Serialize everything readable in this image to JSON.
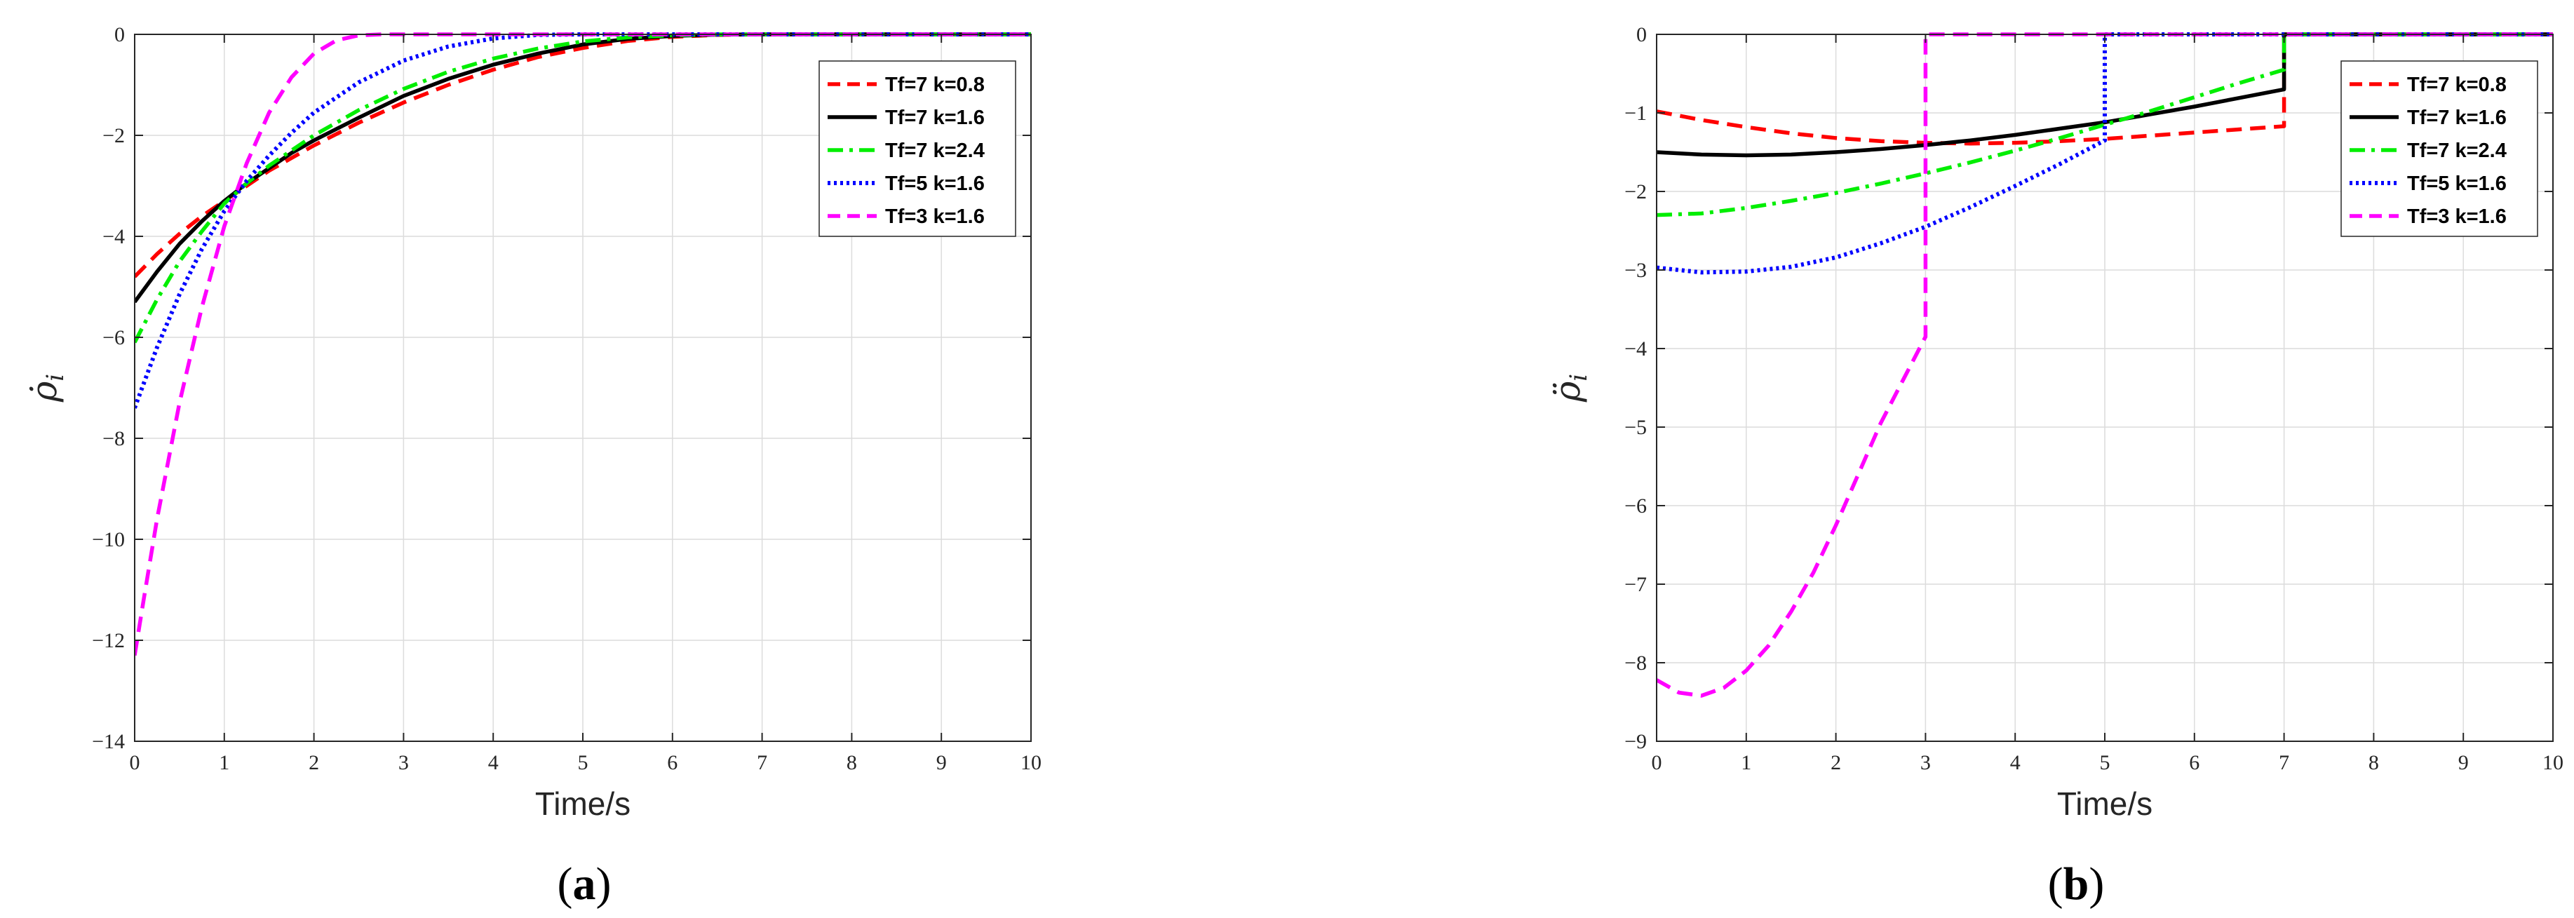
{
  "chart_data": [
    {
      "id": "a",
      "type": "line",
      "caption": "a",
      "xlabel": "Time/s",
      "ylabel": "ρ̇",
      "ylabel_sub": "i",
      "xlim": [
        0,
        10
      ],
      "ylim": [
        -14,
        0
      ],
      "xticks": [
        0,
        1,
        2,
        3,
        4,
        5,
        6,
        7,
        8,
        9,
        10
      ],
      "yticks": [
        0,
        -2,
        -4,
        -6,
        -8,
        -10,
        -12,
        -14
      ],
      "ytick_labels": [
        "0",
        "−2",
        "−4",
        "−6",
        "−8",
        "−10",
        "−12",
        "−14"
      ],
      "grid": true,
      "legend_position": "top-right",
      "series": [
        {
          "name": "Tf=7 k=0.8",
          "color": "#ff0000",
          "style": "dashed",
          "x": [
            0,
            0.25,
            0.5,
            0.75,
            1,
            1.25,
            1.5,
            1.75,
            2,
            2.5,
            3,
            3.5,
            4,
            4.5,
            5,
            5.5,
            6,
            6.5,
            7,
            10
          ],
          "y": [
            -4.8,
            -4.35,
            -3.95,
            -3.6,
            -3.3,
            -3.0,
            -2.7,
            -2.45,
            -2.2,
            -1.75,
            -1.35,
            -1.0,
            -0.7,
            -0.45,
            -0.27,
            -0.13,
            -0.05,
            -0.01,
            0,
            0
          ]
        },
        {
          "name": "Tf=7 k=1.6",
          "color": "#000000",
          "style": "solid",
          "x": [
            0,
            0.25,
            0.5,
            0.75,
            1,
            1.25,
            1.5,
            1.75,
            2,
            2.5,
            3,
            3.5,
            4,
            4.5,
            5,
            5.5,
            6,
            6.5,
            7,
            10
          ],
          "y": [
            -5.3,
            -4.7,
            -4.15,
            -3.7,
            -3.3,
            -2.95,
            -2.65,
            -2.35,
            -2.1,
            -1.65,
            -1.22,
            -0.88,
            -0.6,
            -0.38,
            -0.2,
            -0.09,
            -0.03,
            -0.005,
            0,
            0
          ]
        },
        {
          "name": "Tf=7 k=2.4",
          "color": "#00ee00",
          "style": "dashdot",
          "x": [
            0,
            0.25,
            0.5,
            0.75,
            1,
            1.25,
            1.5,
            1.75,
            2,
            2.5,
            3,
            3.5,
            4,
            4.5,
            5,
            5.5,
            6,
            6.5,
            7,
            10
          ],
          "y": [
            -6.1,
            -5.25,
            -4.5,
            -3.9,
            -3.35,
            -2.95,
            -2.6,
            -2.3,
            -2.0,
            -1.5,
            -1.08,
            -0.74,
            -0.48,
            -0.28,
            -0.14,
            -0.06,
            -0.02,
            0,
            0,
            0
          ]
        },
        {
          "name": "Tf=5 k=1.6",
          "color": "#0000ff",
          "style": "dotted",
          "x": [
            0,
            0.25,
            0.5,
            0.75,
            1,
            1.25,
            1.5,
            1.75,
            2,
            2.5,
            3,
            3.5,
            4,
            4.5,
            5,
            10
          ],
          "y": [
            -7.4,
            -6.2,
            -5.15,
            -4.25,
            -3.5,
            -2.9,
            -2.4,
            -1.95,
            -1.55,
            -0.95,
            -0.52,
            -0.24,
            -0.08,
            -0.01,
            0,
            0
          ]
        },
        {
          "name": "Tf=3 k=1.6",
          "color": "#ff00ff",
          "style": "dashed",
          "x": [
            0,
            0.1,
            0.25,
            0.5,
            0.75,
            1,
            1.25,
            1.5,
            1.75,
            2,
            2.25,
            2.5,
            2.75,
            3,
            10
          ],
          "y": [
            -12.3,
            -11.2,
            -9.6,
            -7.3,
            -5.4,
            -3.8,
            -2.55,
            -1.55,
            -0.85,
            -0.38,
            -0.12,
            -0.02,
            0,
            0,
            0
          ]
        }
      ]
    },
    {
      "id": "b",
      "type": "line",
      "caption": "b",
      "xlabel": "Time/s",
      "ylabel": "ρ̈",
      "ylabel_sub": "i",
      "xlim": [
        0,
        10
      ],
      "ylim": [
        -9,
        0
      ],
      "xticks": [
        0,
        1,
        2,
        3,
        4,
        5,
        6,
        7,
        8,
        9,
        10
      ],
      "yticks": [
        0,
        -1,
        -2,
        -3,
        -4,
        -5,
        -6,
        -7,
        -8,
        -9
      ],
      "ytick_labels": [
        "0",
        "−1",
        "−2",
        "−3",
        "−4",
        "−5",
        "−6",
        "−7",
        "−8",
        "−9"
      ],
      "grid": true,
      "legend_position": "top-right",
      "series": [
        {
          "name": "Tf=7 k=0.8",
          "color": "#ff0000",
          "style": "dashed",
          "x": [
            0,
            0.5,
            1,
            1.5,
            2,
            2.5,
            3,
            3.5,
            4,
            4.5,
            5,
            5.5,
            6,
            6.5,
            7,
            7,
            10
          ],
          "y": [
            -0.98,
            -1.09,
            -1.18,
            -1.26,
            -1.32,
            -1.36,
            -1.38,
            -1.39,
            -1.38,
            -1.36,
            -1.33,
            -1.29,
            -1.25,
            -1.21,
            -1.17,
            0,
            0
          ]
        },
        {
          "name": "Tf=7 k=1.6",
          "color": "#000000",
          "style": "solid",
          "x": [
            0,
            0.5,
            1,
            1.5,
            2,
            2.5,
            3,
            3.5,
            4,
            4.5,
            5,
            5.5,
            6,
            6.5,
            7,
            7,
            10
          ],
          "y": [
            -1.5,
            -1.53,
            -1.54,
            -1.53,
            -1.5,
            -1.46,
            -1.41,
            -1.35,
            -1.28,
            -1.2,
            -1.12,
            -1.02,
            -0.92,
            -0.81,
            -0.7,
            0,
            0
          ]
        },
        {
          "name": "Tf=7 k=2.4",
          "color": "#00ee00",
          "style": "dashdot",
          "x": [
            0,
            0.5,
            1,
            1.5,
            2,
            2.5,
            3,
            3.5,
            4,
            4.5,
            5,
            5.5,
            6,
            6.5,
            7,
            7,
            10
          ],
          "y": [
            -2.3,
            -2.28,
            -2.21,
            -2.12,
            -2.02,
            -1.9,
            -1.77,
            -1.63,
            -1.48,
            -1.32,
            -1.15,
            -0.98,
            -0.8,
            -0.62,
            -0.45,
            0,
            0
          ]
        },
        {
          "name": "Tf=5 k=1.6",
          "color": "#0000ff",
          "style": "dotted",
          "x": [
            0,
            0.5,
            1,
            1.5,
            2,
            2.5,
            3,
            3.5,
            4,
            4.5,
            5,
            5,
            10
          ],
          "y": [
            -2.97,
            -3.03,
            -3.02,
            -2.96,
            -2.84,
            -2.66,
            -2.45,
            -2.2,
            -1.93,
            -1.65,
            -1.35,
            0,
            0
          ]
        },
        {
          "name": "Tf=3 k=1.6",
          "color": "#ff00ff",
          "style": "dashed",
          "x": [
            0,
            0.25,
            0.5,
            0.75,
            1,
            1.25,
            1.5,
            1.75,
            2,
            2.25,
            2.5,
            2.75,
            3,
            3,
            10
          ],
          "y": [
            -8.22,
            -8.38,
            -8.42,
            -8.32,
            -8.1,
            -7.78,
            -7.35,
            -6.85,
            -6.25,
            -5.6,
            -4.95,
            -4.4,
            -3.85,
            0,
            0
          ]
        }
      ]
    }
  ]
}
